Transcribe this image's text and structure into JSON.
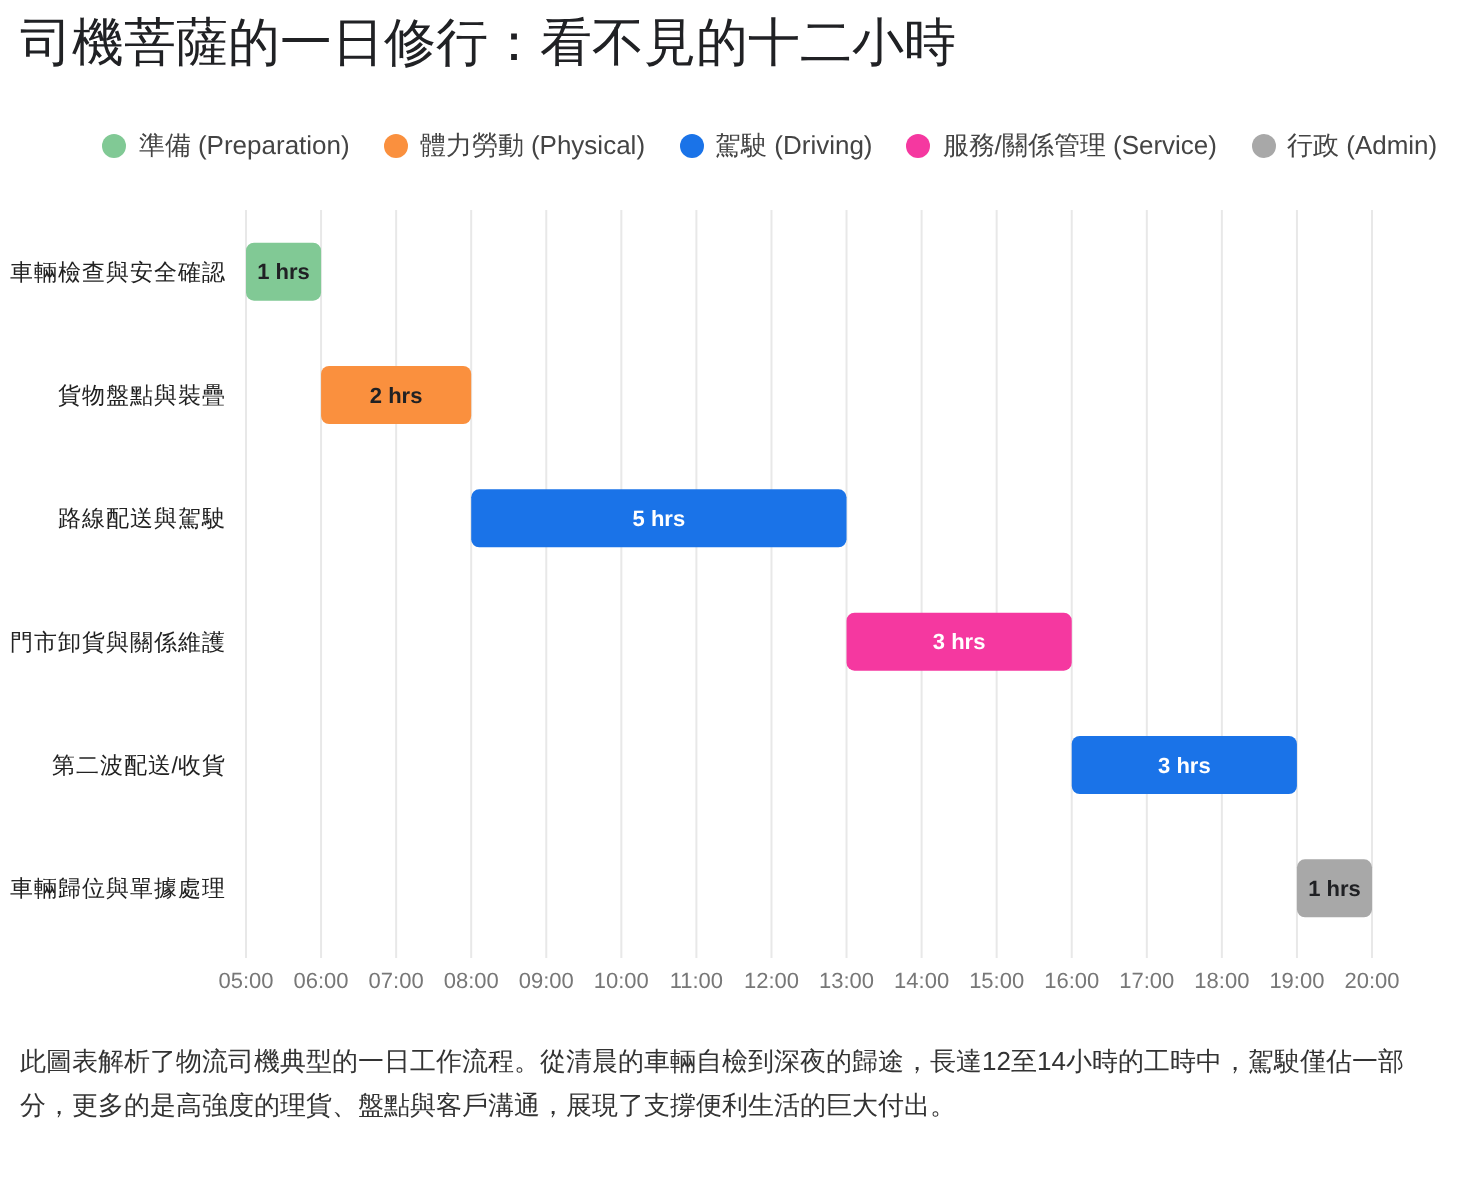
{
  "chart_data": {
    "type": "bar",
    "orientation": "horizontal",
    "title": "司機菩薩的一日修行：看不見的十二小時",
    "categories": [
      "車輛檢查與安全確認",
      "貨物盤點與裝疊",
      "路線配送與駕駛",
      "門市卸貨與關係維護",
      "第二波配送/收貨",
      "車輛歸位與單據處理"
    ],
    "series": [
      {
        "name": "準備 (Preparation)",
        "color": "#81c995",
        "values": [
          1,
          null,
          null,
          null,
          null,
          null
        ],
        "base": [
          5,
          null,
          null,
          null,
          null,
          null
        ],
        "value_labels": [
          "1 hrs",
          null,
          null,
          null,
          null,
          null
        ]
      },
      {
        "name": "體力勞動 (Physical)",
        "color": "#fa903e",
        "values": [
          null,
          2,
          null,
          null,
          null,
          null
        ],
        "base": [
          null,
          6,
          null,
          null,
          null,
          null
        ],
        "value_labels": [
          null,
          "2 hrs",
          null,
          null,
          null,
          null
        ]
      },
      {
        "name": "駕駛 (Driving)",
        "color": "#1a73e8",
        "values": [
          null,
          null,
          5,
          null,
          3,
          null
        ],
        "base": [
          null,
          null,
          8,
          null,
          16,
          null
        ],
        "value_labels": [
          null,
          null,
          "5 hrs",
          null,
          "3 hrs",
          null
        ]
      },
      {
        "name": "服務/關係管理 (Service)",
        "color": "#f538a0",
        "values": [
          null,
          null,
          null,
          3,
          null,
          null
        ],
        "base": [
          null,
          null,
          null,
          13,
          null,
          null
        ],
        "value_labels": [
          null,
          null,
          null,
          "3 hrs",
          null,
          null
        ]
      },
      {
        "name": "行政 (Admin)",
        "color": "#a8a8a8",
        "values": [
          null,
          null,
          null,
          null,
          null,
          1
        ],
        "base": [
          null,
          null,
          null,
          null,
          null,
          19
        ],
        "value_labels": [
          null,
          null,
          null,
          null,
          null,
          "1 hrs"
        ]
      }
    ],
    "xlim": [
      5,
      20
    ],
    "xticks": [
      {
        "value": 5,
        "label": "05:00"
      },
      {
        "value": 6,
        "label": "06:00"
      },
      {
        "value": 7,
        "label": "07:00"
      },
      {
        "value": 8,
        "label": "08:00"
      },
      {
        "value": 9,
        "label": "09:00"
      },
      {
        "value": 10,
        "label": "10:00"
      },
      {
        "value": 11,
        "label": "11:00"
      },
      {
        "value": 12,
        "label": "12:00"
      },
      {
        "value": 13,
        "label": "13:00"
      },
      {
        "value": 14,
        "label": "14:00"
      },
      {
        "value": 15,
        "label": "15:00"
      },
      {
        "value": 16,
        "label": "16:00"
      },
      {
        "value": 17,
        "label": "17:00"
      },
      {
        "value": 18,
        "label": "18:00"
      },
      {
        "value": 19,
        "label": "19:00"
      },
      {
        "value": 20,
        "label": "20:00"
      }
    ],
    "grid": "x",
    "legend": "top",
    "annotations": [
      "此圖表解析了物流司機典型的一日工作流程。從清晨的車輛自檢到深夜的歸途，長達12至14小時的工時中，駕駛僅佔一部分，更多的是高強度的理貨、盤點與客戶溝通，展現了支撐便利生活的巨大付出。"
    ]
  }
}
